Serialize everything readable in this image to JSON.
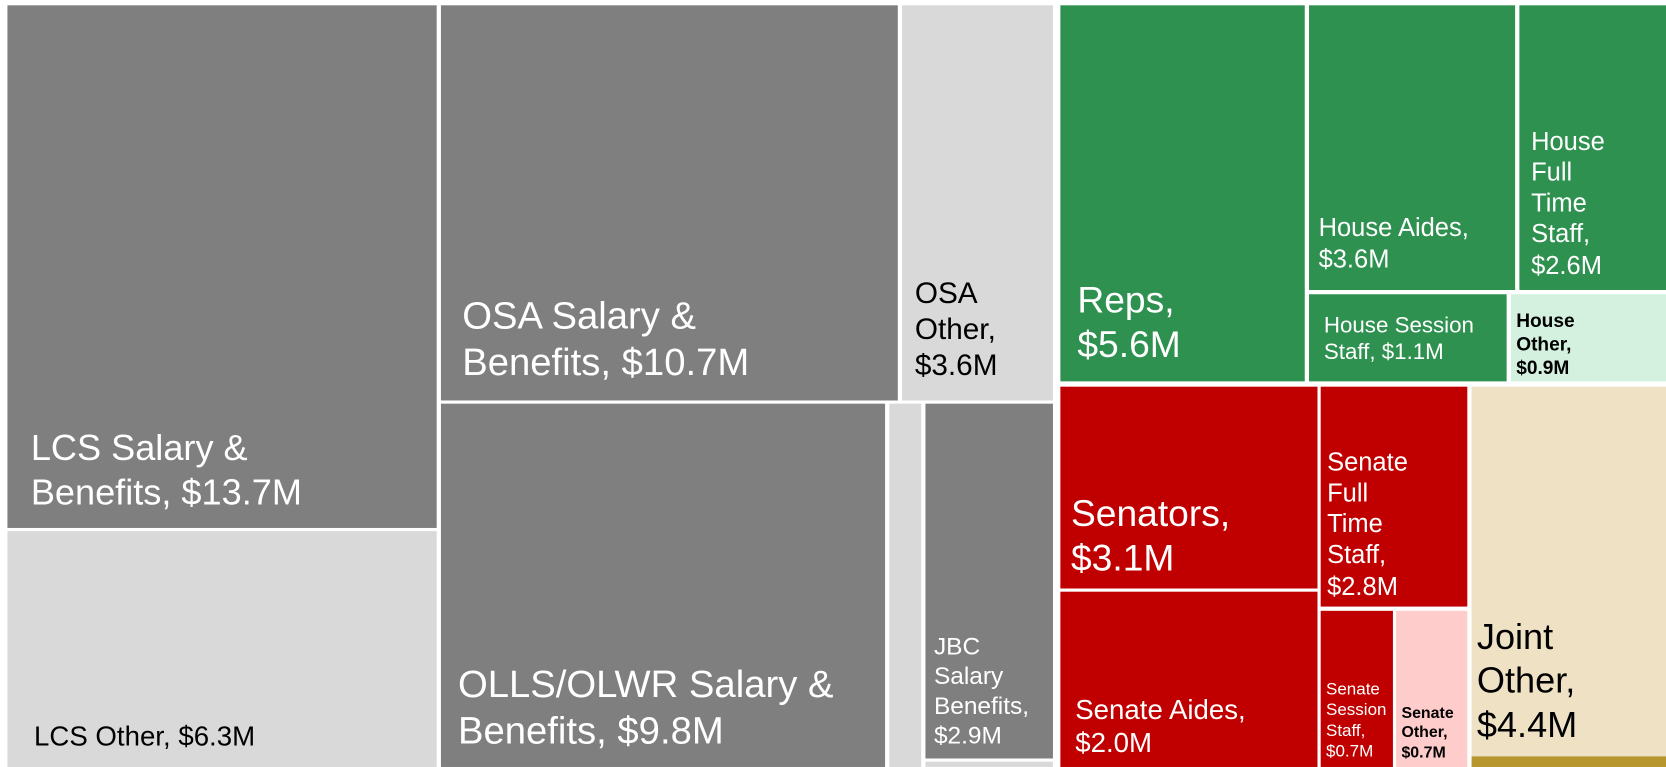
{
  "chart_data": {
    "type": "treemap",
    "labels": [
      "LCS Salary & Benefits, $13.7M",
      "LCS Other, $6.3M",
      "OSA Salary & Benefits, $10.7M",
      "OSA Other, $3.6M",
      "OLLS/OLWR Salary & Benefits, $9.8M",
      null,
      "JBC Salary Benefits, $2.9M",
      null,
      "Reps, $5.6M",
      "House Aides, $3.6M",
      "House Full Time Staff, $2.6M",
      "House Session Staff,  $1.1M",
      "House Other, $0.9M",
      "Senators, $3.1M",
      "Senate Aides, $2.0M",
      "Senate Full Time Staff, $2.8M",
      "Senate Session Staff, $0.7M",
      "Senate Other, $0.7M",
      "Joint Other, $4.4M",
      null
    ],
    "values": [
      13.7,
      6.3,
      10.7,
      3.6,
      9.8,
      0.7,
      2.9,
      0.1,
      5.6,
      3.6,
      2.6,
      1.1,
      0.9,
      3.1,
      2.0,
      2.8,
      0.7,
      0.7,
      4.4,
      0.1
    ],
    "colors": [
      "#7f7f7f",
      "#d9d9d9",
      "#7f7f7f",
      "#d9d9d9",
      "#7f7f7f",
      "#d9d9d9",
      "#7f7f7f",
      "#d9d9d9",
      "#2e9150",
      "#2e9150",
      "#2e9150",
      "#2e9150",
      "#d3f1de",
      "#c00000",
      "#c00000",
      "#c00000",
      "#c00000",
      "#ffcccc",
      "#efe1c4",
      "#b8962e"
    ]
  }
}
